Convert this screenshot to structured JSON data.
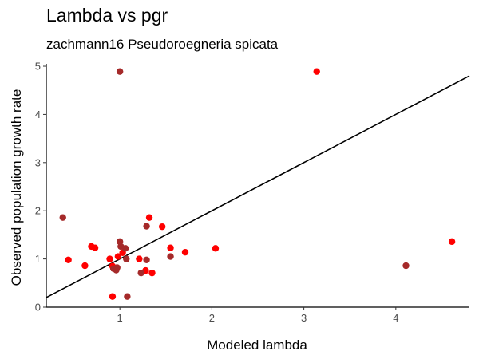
{
  "chart_data": {
    "type": "scatter",
    "title": "Lambda vs pgr",
    "subtitle": "zachmann16 Pseudoroegneria spicata",
    "xlabel": "Modeled lambda",
    "ylabel": "Observed population growth rate",
    "xlim": [
      0.2,
      4.8
    ],
    "ylim": [
      0,
      5.05
    ],
    "xticks": [
      1,
      2,
      3,
      4
    ],
    "yticks": [
      0,
      1,
      2,
      3,
      4,
      5
    ],
    "grid": false,
    "reference_line": {
      "intercept": 0.0,
      "slope": 1.0,
      "color": "#000000"
    },
    "series": [
      {
        "name": "red",
        "color": "#ff0000",
        "points": [
          {
            "x": 0.44,
            "y": 0.98
          },
          {
            "x": 0.62,
            "y": 0.86
          },
          {
            "x": 0.69,
            "y": 1.26
          },
          {
            "x": 0.73,
            "y": 1.23
          },
          {
            "x": 0.89,
            "y": 1.0
          },
          {
            "x": 0.92,
            "y": 0.22
          },
          {
            "x": 0.92,
            "y": 0.85
          },
          {
            "x": 0.98,
            "y": 1.05
          },
          {
            "x": 1.03,
            "y": 1.13
          },
          {
            "x": 1.21,
            "y": 1.0
          },
          {
            "x": 1.28,
            "y": 0.76
          },
          {
            "x": 1.32,
            "y": 1.86
          },
          {
            "x": 1.35,
            "y": 0.71
          },
          {
            "x": 1.46,
            "y": 1.67
          },
          {
            "x": 1.55,
            "y": 1.23
          },
          {
            "x": 1.71,
            "y": 1.14
          },
          {
            "x": 2.04,
            "y": 1.22
          },
          {
            "x": 3.14,
            "y": 4.89
          },
          {
            "x": 4.61,
            "y": 1.36
          }
        ]
      },
      {
        "name": "darkred",
        "color": "#a52a2a",
        "points": [
          {
            "x": 0.38,
            "y": 1.86
          },
          {
            "x": 0.93,
            "y": 0.8
          },
          {
            "x": 0.96,
            "y": 0.77
          },
          {
            "x": 0.97,
            "y": 0.82
          },
          {
            "x": 1.0,
            "y": 4.89
          },
          {
            "x": 1.0,
            "y": 1.36
          },
          {
            "x": 1.01,
            "y": 1.26
          },
          {
            "x": 1.06,
            "y": 1.22
          },
          {
            "x": 1.07,
            "y": 1.0
          },
          {
            "x": 1.08,
            "y": 0.22
          },
          {
            "x": 1.23,
            "y": 0.71
          },
          {
            "x": 1.29,
            "y": 0.98
          },
          {
            "x": 1.29,
            "y": 1.68
          },
          {
            "x": 1.55,
            "y": 1.05
          },
          {
            "x": 4.11,
            "y": 0.86
          }
        ]
      }
    ]
  }
}
